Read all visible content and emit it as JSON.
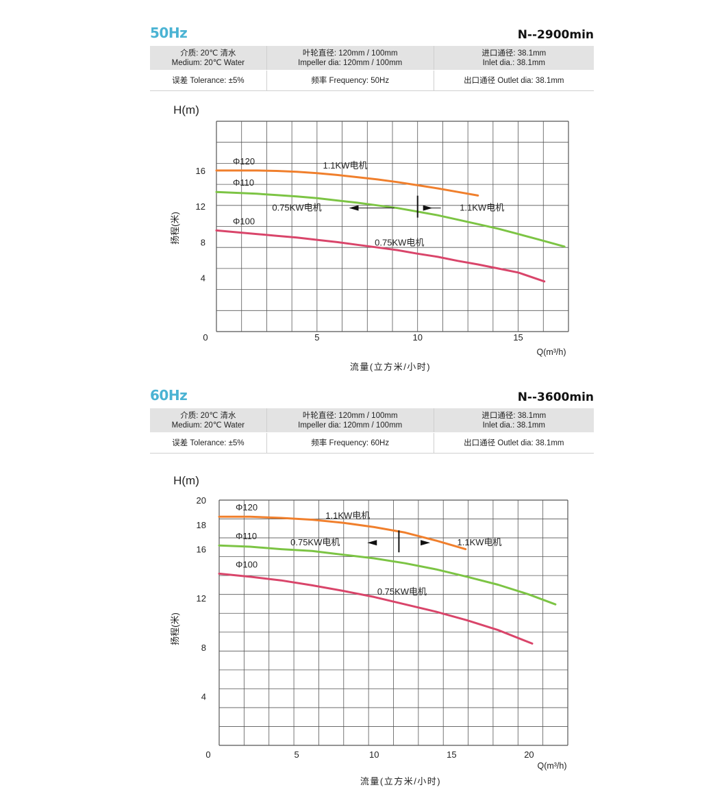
{
  "sections": [
    {
      "frequency_label": "50Hz",
      "speed_label": "N--2900min",
      "specs": {
        "medium_cn": "介质: 20℃  清水",
        "medium_en": "Medium: 20℃ Water",
        "impeller_cn": "叶轮直径: 120mm / 100mm",
        "impeller_en": "Impeller dia: 120mm / 100mm",
        "inlet_cn": "进口通径: 38.1mm",
        "inlet_en": "Inlet dia.: 38.1mm",
        "tolerance": "误差  Tolerance: ±5%",
        "frequency": "频率  Frequency: 50Hz",
        "outlet": "出口通径  Outlet dia: 38.1mm"
      }
    },
    {
      "frequency_label": "60Hz",
      "speed_label": "N--3600min",
      "specs": {
        "medium_cn": "介质: 20℃  清水",
        "medium_en": "Medium: 20℃ Water",
        "impeller_cn": "叶轮直径: 120mm / 100mm",
        "impeller_en": "Impeller dia: 120mm / 100mm",
        "inlet_cn": "进口通径: 38.1mm",
        "inlet_en": "Inlet dia.: 38.1mm",
        "tolerance": "误差  Tolerance: ±5%",
        "frequency": "频率  Frequency: 60Hz",
        "outlet": "出口通径  Outlet dia: 38.1mm"
      }
    }
  ],
  "colors": {
    "phi120": "#f07f2c",
    "phi110": "#7cc444",
    "phi100": "#d9456a",
    "grid": "#555555",
    "accent": "#4ab3d3"
  },
  "chart_data": [
    {
      "type": "line",
      "title": "50Hz N--2900min",
      "ylabel_top": "H(m)",
      "ylabel_side": "扬程(米)",
      "xlabel_unit": "Q(m³/h)",
      "xlabel": "流量(立方米/小时)",
      "xlim": [
        0,
        17.5
      ],
      "ylim": [
        -2,
        21.5
      ],
      "x_ticks": [
        0,
        5,
        10,
        15
      ],
      "y_ticks": [
        4,
        8,
        12,
        16
      ],
      "series": [
        {
          "name": "Φ120",
          "color_key": "phi120",
          "x": [
            0,
            1,
            2,
            3,
            4,
            5,
            6,
            7,
            8,
            9,
            10,
            11,
            12,
            13
          ],
          "y": [
            16,
            16,
            16,
            15.95,
            15.85,
            15.7,
            15.5,
            15.25,
            15,
            14.7,
            14.35,
            14,
            13.6,
            13.2
          ]
        },
        {
          "name": "Φ110",
          "color_key": "phi110",
          "x": [
            0,
            1,
            2,
            3,
            4,
            5,
            6,
            7,
            8,
            9,
            10,
            11,
            12,
            13,
            14,
            15,
            16,
            17.3
          ],
          "y": [
            13.6,
            13.5,
            13.4,
            13.25,
            13.1,
            12.9,
            12.65,
            12.4,
            12.1,
            11.8,
            11.4,
            11,
            10.5,
            10,
            9.5,
            8.9,
            8.3,
            7.5
          ]
        },
        {
          "name": "Φ100",
          "color_key": "phi100",
          "x": [
            0,
            1,
            2,
            3,
            4,
            5,
            6,
            7,
            8,
            9,
            10,
            11,
            12,
            13,
            14,
            15,
            16.3
          ],
          "y": [
            9.3,
            9.1,
            8.9,
            8.7,
            8.5,
            8.25,
            8,
            7.7,
            7.4,
            7.1,
            6.7,
            6.35,
            5.9,
            5.5,
            5.05,
            4.6,
            3.6
          ]
        }
      ],
      "annotations": [
        {
          "text": "1.1KW电机",
          "x": 6.4,
          "y": 16.2
        },
        {
          "text": "0.75KW电机",
          "x": 4.0,
          "y": 11.5
        },
        {
          "text": "1.1KW电机",
          "x": 13.2,
          "y": 11.5
        },
        {
          "text": "0.75KW电机",
          "x": 9.1,
          "y": 7.6
        }
      ],
      "divider_x": 10
    },
    {
      "type": "line",
      "title": "60Hz N--3600min",
      "ylabel_top": "H(m)",
      "ylabel_side": "扬程(米)",
      "xlabel_unit": "Q(m³/h)",
      "xlabel": "流量(立方米/小时)",
      "xlim": [
        0,
        22.5
      ],
      "ylim": [
        0,
        20
      ],
      "x_ticks": [
        0,
        5,
        10,
        15,
        20
      ],
      "y_ticks": [
        4,
        8,
        12,
        16,
        18,
        20
      ],
      "series": [
        {
          "name": "Φ120",
          "color_key": "phi120",
          "x": [
            0,
            2,
            4,
            6,
            8,
            10,
            12,
            14,
            15.9
          ],
          "y": [
            18.65,
            18.65,
            18.55,
            18.4,
            18.15,
            17.8,
            17.35,
            16.7,
            16.0
          ]
        },
        {
          "name": "Φ110",
          "color_key": "phi110",
          "x": [
            0,
            2,
            4,
            6,
            8,
            10,
            12,
            14,
            16,
            18,
            20,
            21.7
          ],
          "y": [
            16.3,
            16.2,
            16.0,
            15.85,
            15.55,
            15.25,
            14.85,
            14.35,
            13.75,
            13.1,
            12.3,
            11.5
          ]
        },
        {
          "name": "Φ100",
          "color_key": "phi100",
          "x": [
            0,
            2,
            4,
            6,
            8,
            10,
            12,
            14,
            16,
            18,
            20.2
          ],
          "y": [
            14,
            13.75,
            13.45,
            13.05,
            12.6,
            12.1,
            11.5,
            10.9,
            10.2,
            9.4,
            8.3
          ]
        }
      ],
      "annotations": [
        {
          "text": "1.1KW电机",
          "x": 8.3,
          "y": 18.5
        },
        {
          "text": "0.75KW电机",
          "x": 6.2,
          "y": 16.3
        },
        {
          "text": "1.1KW电机",
          "x": 16.8,
          "y": 16.3
        },
        {
          "text": "0.75KW电机",
          "x": 11.8,
          "y": 12.3
        }
      ],
      "divider_x": 11.6
    }
  ]
}
